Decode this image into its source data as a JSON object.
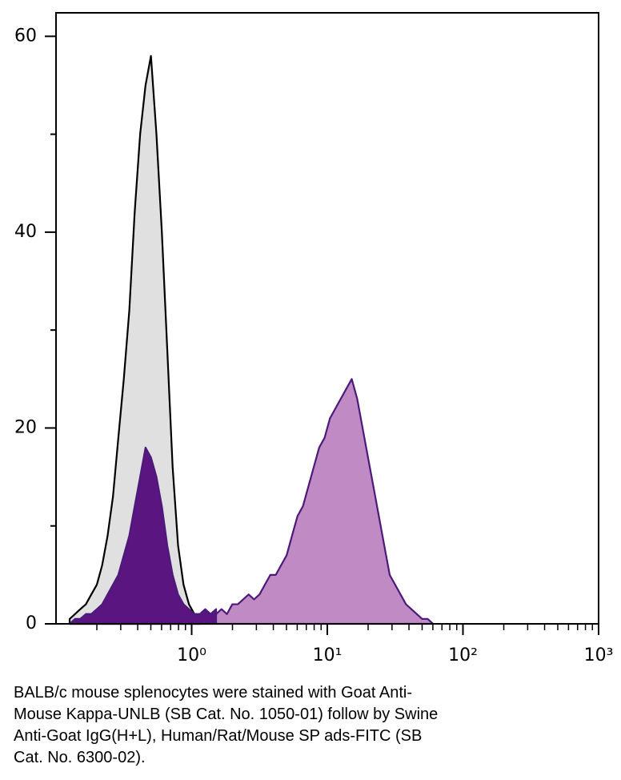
{
  "chart_data": {
    "type": "histogram-overlay",
    "xscale": "log",
    "xlim": [
      0.1,
      1000
    ],
    "ylim": [
      0,
      62.4
    ],
    "yticks": [
      0,
      20,
      40,
      60
    ],
    "yminorticks": [
      10,
      30,
      50
    ],
    "xticks": [
      {
        "value": 1,
        "label": "10⁰"
      },
      {
        "value": 10,
        "label": "10¹"
      },
      {
        "value": 100,
        "label": "10²"
      },
      {
        "value": 1000,
        "label": "10³"
      }
    ],
    "xminorticks": [
      0.2,
      0.3,
      0.4,
      0.5,
      0.6,
      0.7,
      0.8,
      0.9,
      2,
      3,
      4,
      5,
      6,
      7,
      8,
      9,
      20,
      30,
      40,
      50,
      60,
      70,
      80,
      90,
      200,
      300,
      400,
      500,
      600,
      700,
      800,
      900
    ],
    "series": [
      {
        "color": "#e0e0e0",
        "stroke": "#000000",
        "x": [
          0.126,
          0.138,
          0.151,
          0.166,
          0.182,
          0.2,
          0.219,
          0.24,
          0.263,
          0.288,
          0.316,
          0.347,
          0.38,
          0.417,
          0.457,
          0.501,
          0.55,
          0.603,
          0.661,
          0.724,
          0.794,
          0.871,
          0.955,
          1.047,
          1.148
        ],
        "values": [
          0.5,
          1,
          1.5,
          2,
          3,
          4,
          6,
          9,
          13,
          19,
          25,
          32,
          42,
          50,
          55,
          58,
          50,
          40,
          28,
          16,
          8,
          4,
          2,
          1,
          0
        ]
      },
      {
        "color": "#5a1580",
        "stroke": "#4b1a7a",
        "x": [
          0.126,
          0.138,
          0.151,
          0.166,
          0.182,
          0.2,
          0.219,
          0.24,
          0.263,
          0.288,
          0.316,
          0.347,
          0.38,
          0.417,
          0.457,
          0.501,
          0.55,
          0.603,
          0.661,
          0.724,
          0.794,
          0.871,
          0.955,
          1.047,
          1.148,
          1.259,
          1.38,
          1.514
        ],
        "values": [
          0,
          0.5,
          0.5,
          1,
          1,
          1.5,
          2,
          3,
          4,
          5,
          7,
          9,
          12,
          15,
          18,
          17,
          15,
          12,
          8,
          5,
          3,
          2,
          1.5,
          1,
          1,
          1.5,
          1,
          1.5
        ]
      },
      {
        "color": "#c08ac4",
        "stroke": "#4b1a7a",
        "x": [
          1.514,
          1.66,
          1.82,
          1.995,
          2.188,
          2.399,
          2.63,
          2.884,
          3.162,
          3.467,
          3.802,
          4.169,
          4.571,
          5.012,
          5.495,
          6.026,
          6.607,
          7.244,
          7.943,
          8.71,
          9.55,
          10.47,
          11.48,
          12.59,
          13.8,
          15.14,
          16.6,
          18.2,
          19.95,
          21.88,
          23.99,
          26.3,
          28.84,
          31.62,
          34.67,
          38.02,
          41.69,
          45.71,
          50.12,
          54.95,
          60.26
        ],
        "values": [
          1,
          1.5,
          1,
          2,
          2,
          2.5,
          3,
          2.5,
          3,
          4,
          5,
          5,
          6,
          7,
          9,
          11,
          12,
          14,
          16,
          18,
          19,
          21,
          22,
          23,
          24,
          25,
          23,
          20,
          17,
          14,
          11,
          8,
          5,
          4,
          3,
          2,
          1.5,
          1,
          0.5,
          0.5,
          0
        ]
      }
    ],
    "caption": [
      "BALB/c mouse splenocytes were stained with Goat Anti-",
      "Mouse Kappa-UNLB (SB Cat. No. 1050-01) follow by Swine",
      "Anti-Goat IgG(H+L), Human/Rat/Mouse SP ads-FITC (SB",
      "Cat. No. 6300-02)."
    ]
  }
}
